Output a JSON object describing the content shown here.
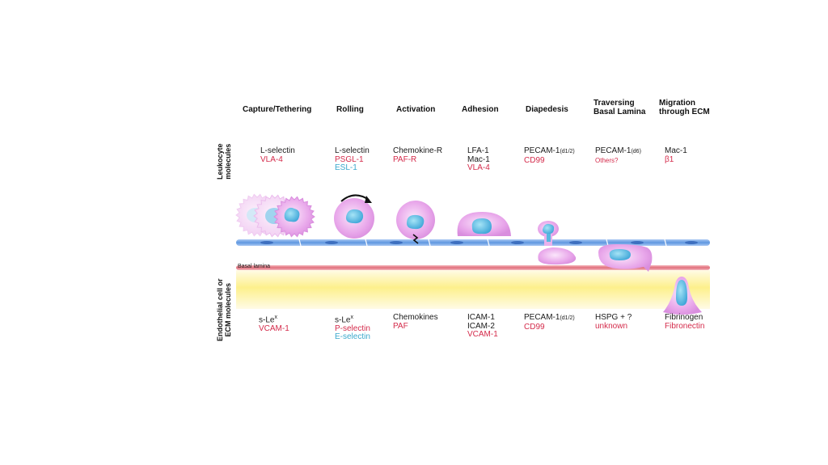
{
  "stages": [
    {
      "id": "capture",
      "title": [
        "Capture/Tethering"
      ],
      "leukocyte": [
        {
          "t": "L-selectin",
          "c": "blk"
        },
        {
          "t": "VLA-4",
          "c": "red"
        }
      ],
      "endothelial": [
        {
          "t": "s-Le",
          "sup": "x",
          "c": "blk"
        },
        {
          "t": "VCAM-1",
          "c": "red"
        }
      ]
    },
    {
      "id": "rolling",
      "title": [
        "Rolling"
      ],
      "leukocyte": [
        {
          "t": "L-selectin",
          "c": "blk"
        },
        {
          "t": "PSGL-1",
          "c": "red"
        },
        {
          "t": "ESL-1",
          "c": "cyan"
        }
      ],
      "endothelial": [
        {
          "t": "s-Le",
          "sup": "x",
          "c": "blk"
        },
        {
          "t": "P-selectin",
          "c": "red"
        },
        {
          "t": "E-selectin",
          "c": "cyan"
        }
      ]
    },
    {
      "id": "activation",
      "title": [
        "Activation"
      ],
      "leukocyte": [
        {
          "t": "Chemokine-R",
          "c": "blk"
        },
        {
          "t": "PAF-R",
          "c": "red"
        }
      ],
      "endothelial": [
        {
          "t": "Chemokines",
          "c": "blk"
        },
        {
          "t": "PAF",
          "c": "red"
        }
      ]
    },
    {
      "id": "adhesion",
      "title": [
        "Adhesion"
      ],
      "leukocyte": [
        {
          "t": "LFA-1",
          "c": "blk"
        },
        {
          "t": "Mac-1",
          "c": "blk"
        },
        {
          "t": "VLA-4",
          "c": "red"
        }
      ],
      "endothelial": [
        {
          "t": "ICAM-1",
          "c": "blk"
        },
        {
          "t": "ICAM-2",
          "c": "blk"
        },
        {
          "t": "VCAM-1",
          "c": "red"
        }
      ]
    },
    {
      "id": "diapedesis",
      "title": [
        "Diapedesis"
      ],
      "leukocyte": [
        {
          "t": "PECAM-1",
          "small": "(d1/2)",
          "c": "blk"
        },
        {
          "t": "CD99",
          "c": "red"
        }
      ],
      "endothelial": [
        {
          "t": "PECAM-1",
          "small": "(d1/2)",
          "c": "blk"
        },
        {
          "t": "CD99",
          "c": "red"
        }
      ]
    },
    {
      "id": "traversing",
      "title": [
        "Traversing",
        "Basal Lamina"
      ],
      "leukocyte": [
        {
          "t": "PECAM-1",
          "small": "(d6)",
          "c": "blk"
        },
        {
          "t": "Others?",
          "c": "red",
          "sm": true
        }
      ],
      "endothelial": [
        {
          "t": "HSPG + ?",
          "c": "blk"
        },
        {
          "t": "unknown",
          "c": "red"
        }
      ]
    },
    {
      "id": "migration",
      "title": [
        "Migration",
        "through ECM"
      ],
      "leukocyte": [
        {
          "t": "Mac-1",
          "c": "blk"
        },
        {
          "t": "β1",
          "c": "red"
        }
      ],
      "endothelial": [
        {
          "t": "Fibrinogen",
          "c": "blk"
        },
        {
          "t": "Fibronectin",
          "c": "red"
        }
      ]
    }
  ],
  "side_labels": {
    "leukocyte": [
      "Leukocyte",
      "molecules"
    ],
    "endothelial": [
      "Endothelial cell or",
      "ECM molecules"
    ]
  },
  "basal_lamina_label": "Basal lamina",
  "colors": {
    "membrane": "#6b9fe0",
    "lamina": "#e07a85",
    "ecm_top": "#fff8d8",
    "ecm_mid": "#fdf08a",
    "cell": "#e6a0e8",
    "nucleus": "#58b8e0"
  }
}
